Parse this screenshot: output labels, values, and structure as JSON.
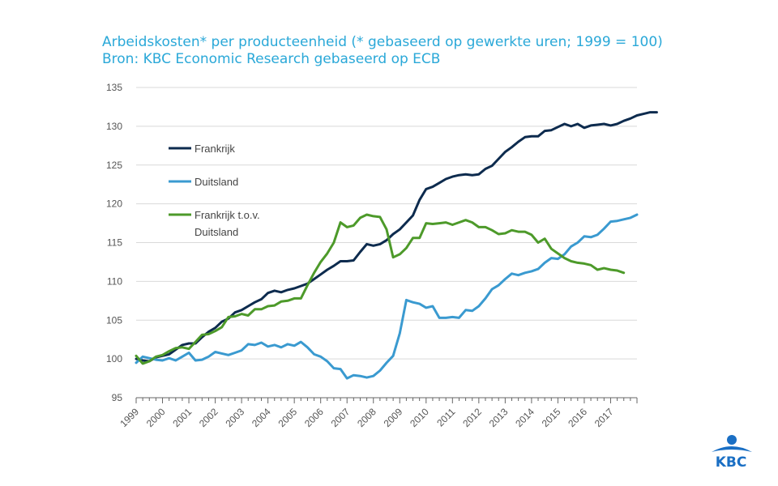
{
  "header": {
    "title": "Arbeidskosten* per producteenheid (* gebaseerd op gewerkte uren; 1999 = 100)",
    "source": "Bron: KBC Economic Research gebaseerd op ECB"
  },
  "logo": {
    "text": "KBC",
    "color": "#1a6fc4"
  },
  "chart_data": {
    "type": "line",
    "x_start_year": 1999,
    "x_labels": [
      "1999",
      "2000",
      "2001",
      "2002",
      "2003",
      "2004",
      "2005",
      "2006",
      "2007",
      "2008",
      "2009",
      "2010",
      "2011",
      "2012",
      "2013",
      "2014",
      "2015",
      "2016",
      "2017"
    ],
    "ylim": [
      95,
      135
    ],
    "y_ticks": [
      95,
      100,
      105,
      110,
      115,
      120,
      125,
      130,
      135
    ],
    "grid": "horizontal",
    "legend_position": "inside-left",
    "series": [
      {
        "name": "Frankrijk",
        "color": "#0d2b4e",
        "values": [
          100.0,
          99.8,
          99.7,
          100.2,
          100.4,
          100.6,
          101.2,
          101.8,
          102.0,
          102.0,
          102.8,
          103.5,
          104.0,
          104.8,
          105.2,
          106.0,
          106.3,
          106.8,
          107.3,
          107.7,
          108.5,
          108.8,
          108.6,
          108.9,
          109.1,
          109.4,
          109.7,
          110.3,
          110.9,
          111.5,
          112.0,
          112.6,
          112.6,
          112.7,
          113.8,
          114.8,
          114.6,
          114.8,
          115.3,
          116.1,
          116.7,
          117.6,
          118.5,
          120.5,
          121.9,
          122.2,
          122.7,
          123.2,
          123.5,
          123.7,
          123.8,
          123.7,
          123.8,
          124.5,
          124.9,
          125.8,
          126.7,
          127.3,
          128.0,
          128.6,
          128.7,
          128.7,
          129.4,
          129.5,
          129.9,
          130.3,
          130.0,
          130.3,
          129.8,
          130.1,
          130.2,
          130.3,
          130.1,
          130.3,
          130.7,
          131.0,
          131.4,
          131.6,
          131.8,
          131.8
        ]
      },
      {
        "name": "Duitsland",
        "color": "#3a9ad0",
        "values": [
          99.5,
          100.3,
          100.1,
          99.9,
          99.8,
          100.1,
          99.8,
          100.3,
          100.8,
          99.8,
          99.9,
          100.3,
          100.9,
          100.7,
          100.5,
          100.8,
          101.1,
          101.9,
          101.8,
          102.1,
          101.6,
          101.8,
          101.5,
          101.9,
          101.7,
          102.2,
          101.5,
          100.6,
          100.3,
          99.7,
          98.8,
          98.7,
          97.5,
          97.9,
          97.8,
          97.6,
          97.8,
          98.5,
          99.5,
          100.4,
          103.3,
          107.6,
          107.3,
          107.1,
          106.6,
          106.8,
          105.3,
          105.3,
          105.4,
          105.3,
          106.3,
          106.2,
          106.8,
          107.8,
          109.0,
          109.5,
          110.3,
          111.0,
          110.8,
          111.1,
          111.3,
          111.6,
          112.4,
          113.0,
          112.9,
          113.5,
          114.5,
          115.0,
          115.8,
          115.7,
          116.0,
          116.8,
          117.7,
          117.8,
          118.0,
          118.2,
          118.6
        ]
      },
      {
        "name": "Frankrijk t.o.v. Duitsland",
        "color": "#4d9a2a",
        "values": [
          100.4,
          99.4,
          99.7,
          100.3,
          100.5,
          101.0,
          101.4,
          101.5,
          101.3,
          102.2,
          103.1,
          103.2,
          103.6,
          104.1,
          105.4,
          105.5,
          105.8,
          105.6,
          106.4,
          106.4,
          106.8,
          106.9,
          107.4,
          107.5,
          107.8,
          107.8,
          109.5,
          111.1,
          112.5,
          113.6,
          115.0,
          117.6,
          117.0,
          117.2,
          118.2,
          118.6,
          118.4,
          118.3,
          116.7,
          113.1,
          113.5,
          114.3,
          115.6,
          115.6,
          117.5,
          117.4,
          117.5,
          117.6,
          117.3,
          117.6,
          117.9,
          117.6,
          117.0,
          117.0,
          116.6,
          116.1,
          116.2,
          116.6,
          116.4,
          116.4,
          116.0,
          115.0,
          115.5,
          114.2,
          113.6,
          113.0,
          112.6,
          112.4,
          112.3,
          112.1,
          111.5,
          111.7,
          111.5,
          111.4,
          111.1
        ]
      }
    ]
  }
}
